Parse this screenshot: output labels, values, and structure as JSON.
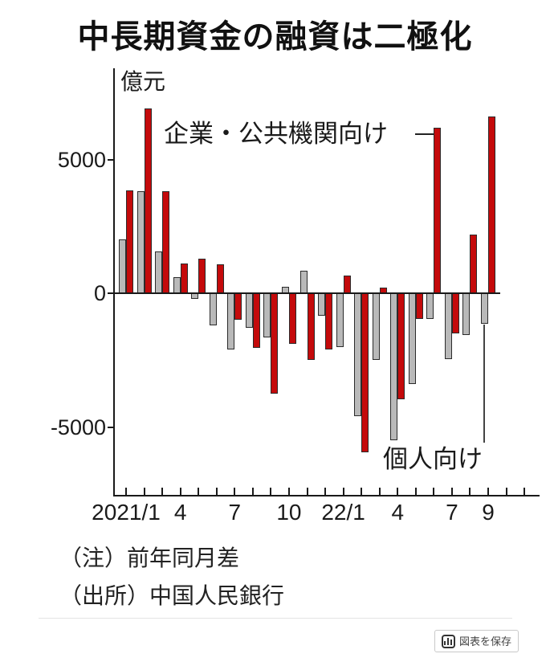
{
  "title": "中長期資金の融資は二極化",
  "chart_data": {
    "type": "bar",
    "title": "中長期資金の融資は二極化",
    "ylabel": "億元",
    "xlabel": "",
    "grid": false,
    "legend_position": "annotated-on-plot",
    "ylim": [
      -7600,
      8400
    ],
    "y_ticks": [
      5000,
      0,
      -5000
    ],
    "y_tick_labels": [
      "5000",
      "0",
      "-5000"
    ],
    "categories": [
      "2021/1",
      "2021/2",
      "2021/3",
      "2021/4",
      "2021/5",
      "2021/6",
      "2021/7",
      "2021/8",
      "2021/9",
      "2021/10",
      "2021/11",
      "2021/12",
      "22/1",
      "22/2",
      "22/3",
      "22/4",
      "22/5",
      "22/6",
      "22/7",
      "22/8",
      "22/9"
    ],
    "x_tick_labels": [
      {
        "index": 0,
        "label": "2021/1"
      },
      {
        "index": 3,
        "label": "4"
      },
      {
        "index": 6,
        "label": "7"
      },
      {
        "index": 9,
        "label": "10"
      },
      {
        "index": 12,
        "label": "22/1"
      },
      {
        "index": 15,
        "label": "4"
      },
      {
        "index": 18,
        "label": "7"
      },
      {
        "index": 20,
        "label": "9"
      }
    ],
    "series": [
      {
        "key": "individual",
        "name": "個人向け",
        "color": "#b9b9b9",
        "values": [
          2000,
          3800,
          1550,
          600,
          -200,
          -1200,
          -2100,
          -1300,
          -1650,
          250,
          850,
          -830,
          -2000,
          -4600,
          -2500,
          -5500,
          -3400,
          -950,
          -2450,
          -1550,
          -1150
        ]
      },
      {
        "key": "corporate",
        "name": "企業・公共機関向け",
        "color": "#c40a0b",
        "values": [
          3850,
          6900,
          3800,
          1100,
          1280,
          1080,
          -1000,
          -2050,
          -3750,
          -1900,
          -2500,
          -2100,
          650,
          -5950,
          200,
          -3950,
          -950,
          6200,
          -1500,
          2200,
          6600
        ]
      }
    ],
    "annotations": [
      {
        "text": "企業・公共機関向け",
        "series": "corporate",
        "points_to": "22/6"
      },
      {
        "text": "個人向け",
        "series": "individual",
        "points_to": "22/9"
      }
    ]
  },
  "notes": [
    "（注）前年同月差",
    "（出所）中国人民銀行"
  ],
  "save_button": {
    "label": "図表を保存",
    "icon": "bar-chart-icon"
  }
}
